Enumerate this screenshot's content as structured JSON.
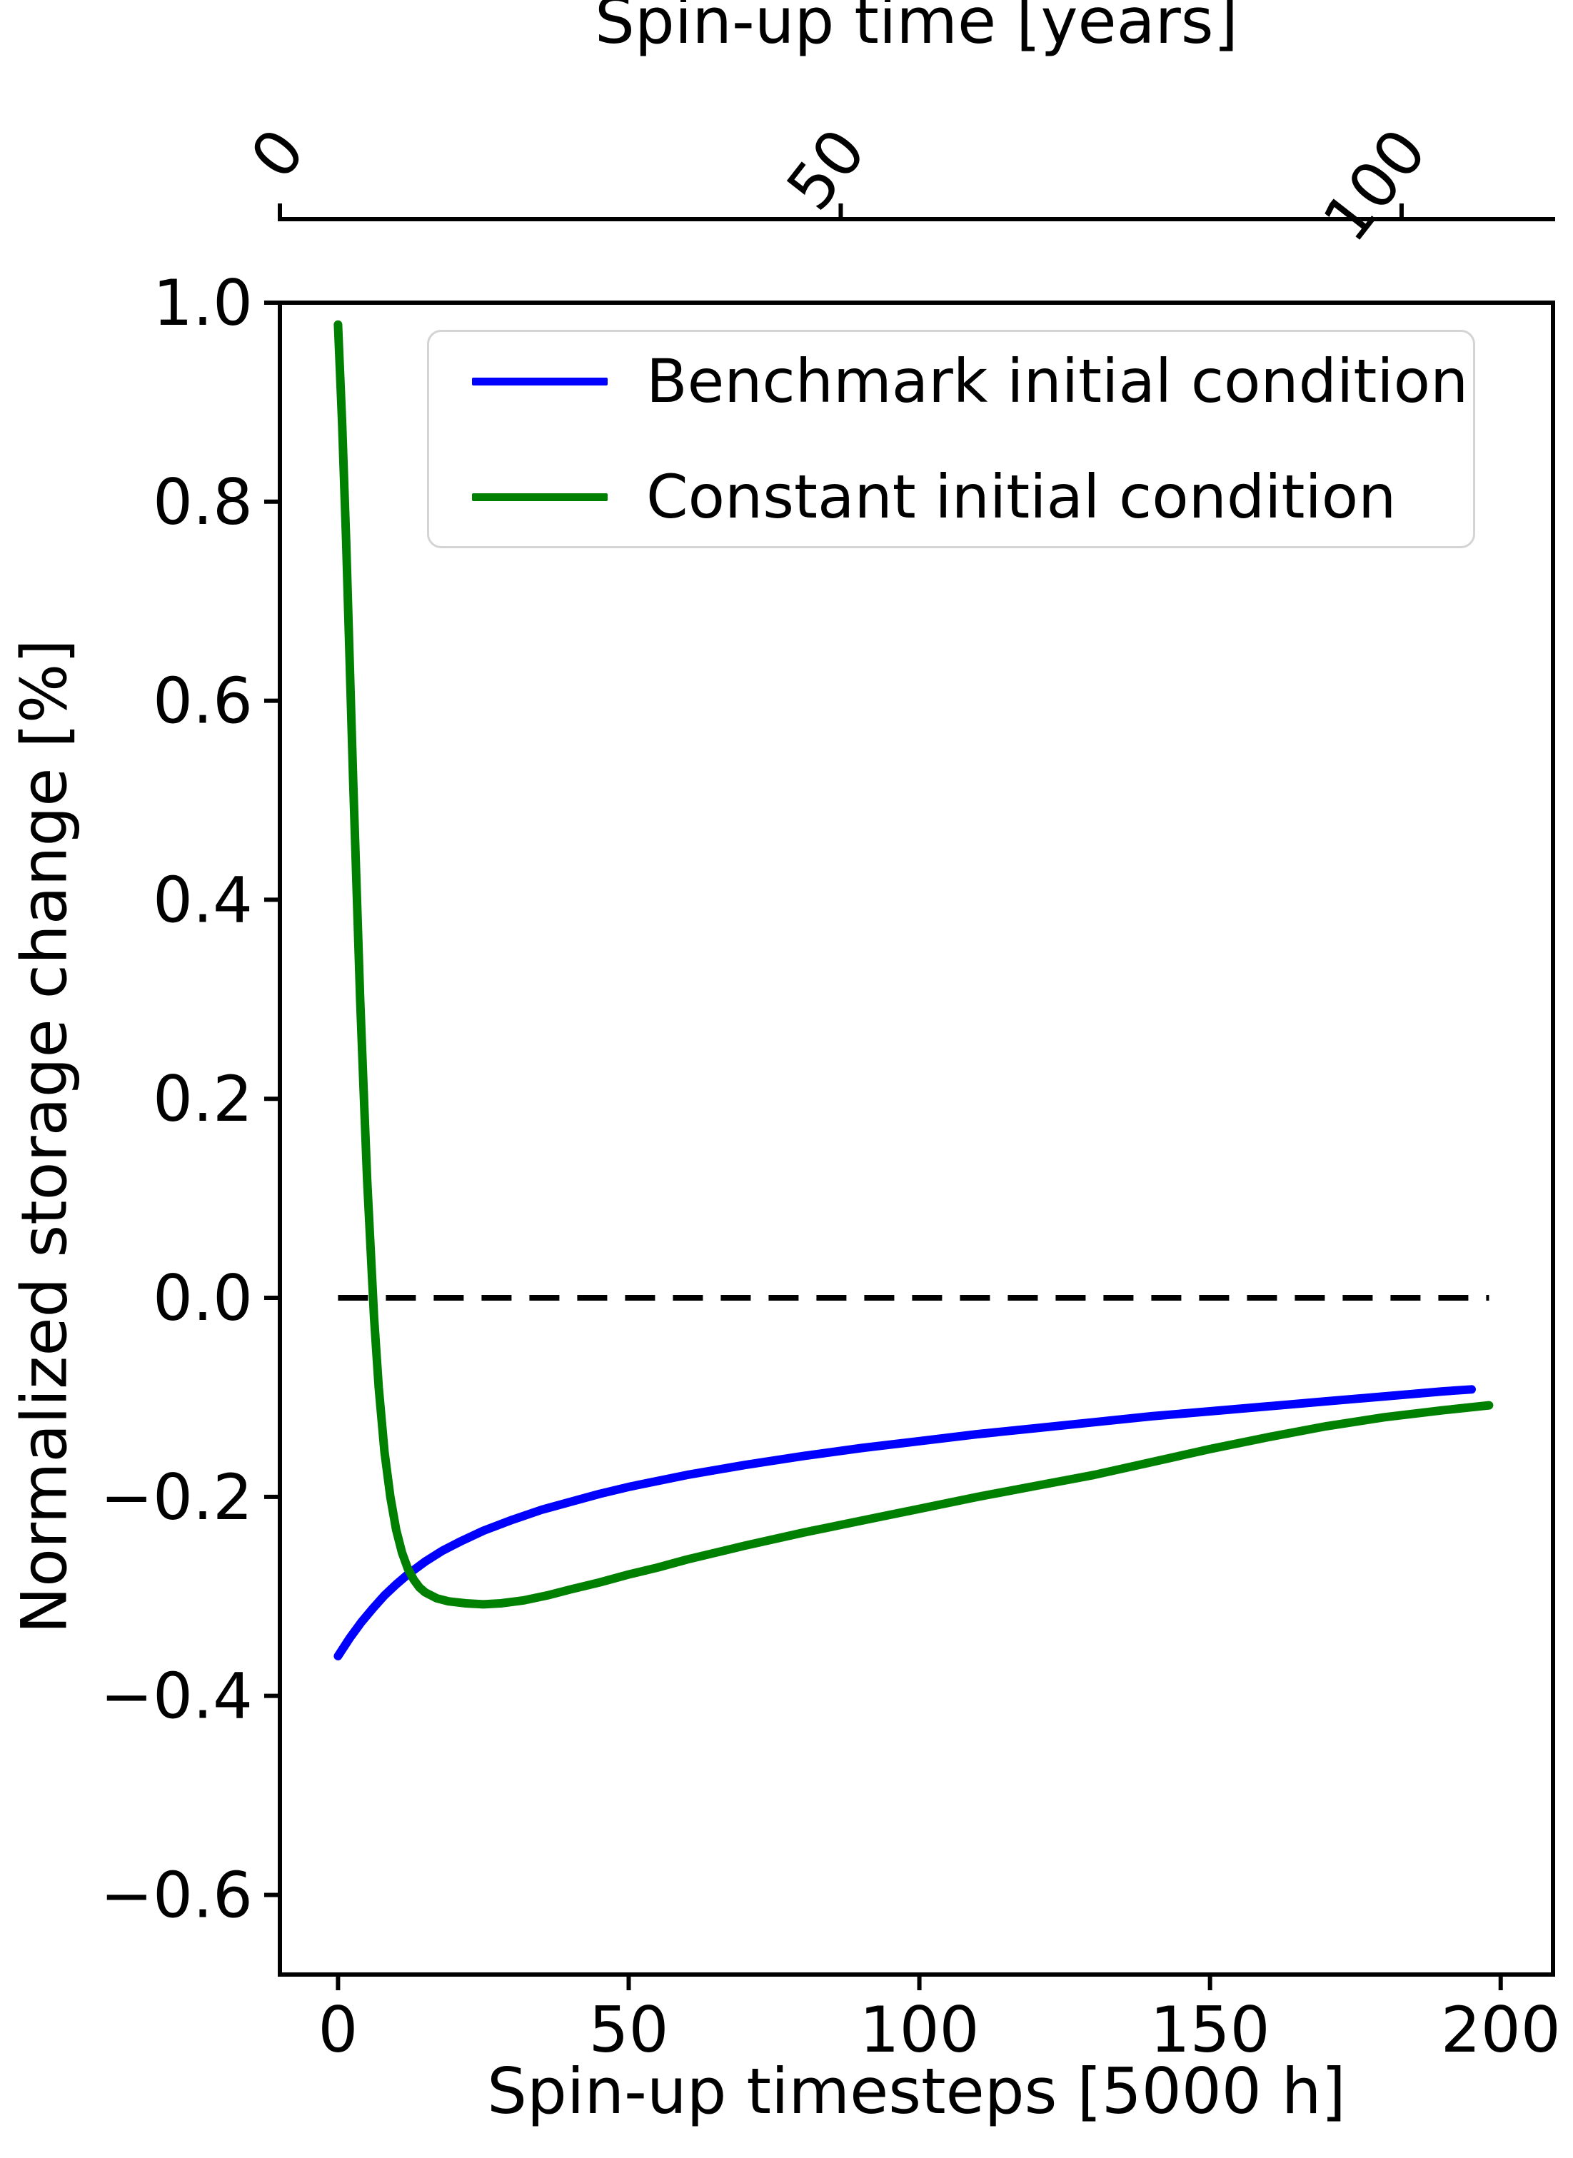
{
  "chart_data": {
    "type": "line",
    "title": "",
    "xlabel": "Spin-up timesteps [5000 h]",
    "xlabel_top": "Spin-up time [years]",
    "ylabel": "Normalized storage change [%]",
    "xlim": [
      -10,
      209
    ],
    "ylim": [
      -0.68,
      1.0
    ],
    "grid": false,
    "legend_position": "upper center",
    "x_axis": {
      "ticks": [
        {
          "value": 0,
          "label": "0"
        },
        {
          "value": 50,
          "label": "50"
        },
        {
          "value": 100,
          "label": "100"
        },
        {
          "value": 150,
          "label": "150"
        },
        {
          "value": 200,
          "label": "200"
        }
      ]
    },
    "y_axis": {
      "ticks": [
        {
          "value": 1.0,
          "label": "1.0"
        },
        {
          "value": 0.8,
          "label": "0.8"
        },
        {
          "value": 0.6,
          "label": "0.6"
        },
        {
          "value": 0.4,
          "label": "0.4"
        },
        {
          "value": 0.2,
          "label": "0.2"
        },
        {
          "value": 0.0,
          "label": "0.0"
        },
        {
          "value": -0.2,
          "label": "−0.2"
        },
        {
          "value": -0.4,
          "label": "−0.4"
        },
        {
          "value": -0.6,
          "label": "−0.6"
        }
      ]
    },
    "top_axis": {
      "range": [
        0,
        113.5
      ],
      "rotation_deg": -52,
      "ticks": [
        {
          "value": 0,
          "label": "0"
        },
        {
          "value": 50,
          "label": "50"
        },
        {
          "value": 100,
          "label": "100"
        }
      ]
    },
    "annotations": [
      {
        "type": "hline",
        "y": 0.0,
        "style": "dashed",
        "color": "#000000",
        "x_start": 0,
        "x_end": 198
      }
    ],
    "series": [
      {
        "name": "Benchmark initial condition",
        "color": "#0000ff",
        "points": [
          [
            0,
            -0.36
          ],
          [
            2,
            -0.342
          ],
          [
            4,
            -0.326
          ],
          [
            6,
            -0.312
          ],
          [
            8,
            -0.299
          ],
          [
            10,
            -0.288
          ],
          [
            12,
            -0.278
          ],
          [
            15,
            -0.265
          ],
          [
            18,
            -0.254
          ],
          [
            21,
            -0.245
          ],
          [
            25,
            -0.234
          ],
          [
            30,
            -0.223
          ],
          [
            35,
            -0.213
          ],
          [
            40,
            -0.205
          ],
          [
            45,
            -0.197
          ],
          [
            50,
            -0.19
          ],
          [
            60,
            -0.178
          ],
          [
            70,
            -0.168
          ],
          [
            80,
            -0.159
          ],
          [
            90,
            -0.151
          ],
          [
            100,
            -0.144
          ],
          [
            110,
            -0.137
          ],
          [
            120,
            -0.131
          ],
          [
            130,
            -0.125
          ],
          [
            140,
            -0.119
          ],
          [
            150,
            -0.114
          ],
          [
            160,
            -0.109
          ],
          [
            170,
            -0.104
          ],
          [
            180,
            -0.099
          ],
          [
            190,
            -0.094
          ],
          [
            195,
            -0.092
          ]
        ]
      },
      {
        "name": "Constant initial condition",
        "color": "#008000",
        "points": [
          [
            0,
            0.978
          ],
          [
            0.7,
            0.88
          ],
          [
            1.4,
            0.76
          ],
          [
            2,
            0.64
          ],
          [
            2.6,
            0.52
          ],
          [
            3.2,
            0.41
          ],
          [
            3.8,
            0.3
          ],
          [
            4.4,
            0.21
          ],
          [
            5,
            0.12
          ],
          [
            5.6,
            0.05
          ],
          [
            6.2,
            -0.02
          ],
          [
            7,
            -0.09
          ],
          [
            8,
            -0.155
          ],
          [
            9,
            -0.2
          ],
          [
            10,
            -0.233
          ],
          [
            11,
            -0.256
          ],
          [
            12,
            -0.272
          ],
          [
            13,
            -0.283
          ],
          [
            14,
            -0.291
          ],
          [
            15,
            -0.296
          ],
          [
            17,
            -0.302
          ],
          [
            19,
            -0.305
          ],
          [
            22,
            -0.307
          ],
          [
            25,
            -0.308
          ],
          [
            28,
            -0.307
          ],
          [
            32,
            -0.304
          ],
          [
            36,
            -0.299
          ],
          [
            40,
            -0.293
          ],
          [
            45,
            -0.286
          ],
          [
            50,
            -0.278
          ],
          [
            55,
            -0.271
          ],
          [
            60,
            -0.263
          ],
          [
            70,
            -0.249
          ],
          [
            80,
            -0.236
          ],
          [
            90,
            -0.224
          ],
          [
            100,
            -0.212
          ],
          [
            110,
            -0.2
          ],
          [
            120,
            -0.189
          ],
          [
            130,
            -0.178
          ],
          [
            140,
            -0.165
          ],
          [
            150,
            -0.152
          ],
          [
            160,
            -0.14
          ],
          [
            170,
            -0.129
          ],
          [
            180,
            -0.12
          ],
          [
            190,
            -0.113
          ],
          [
            198,
            -0.108
          ]
        ]
      }
    ]
  }
}
